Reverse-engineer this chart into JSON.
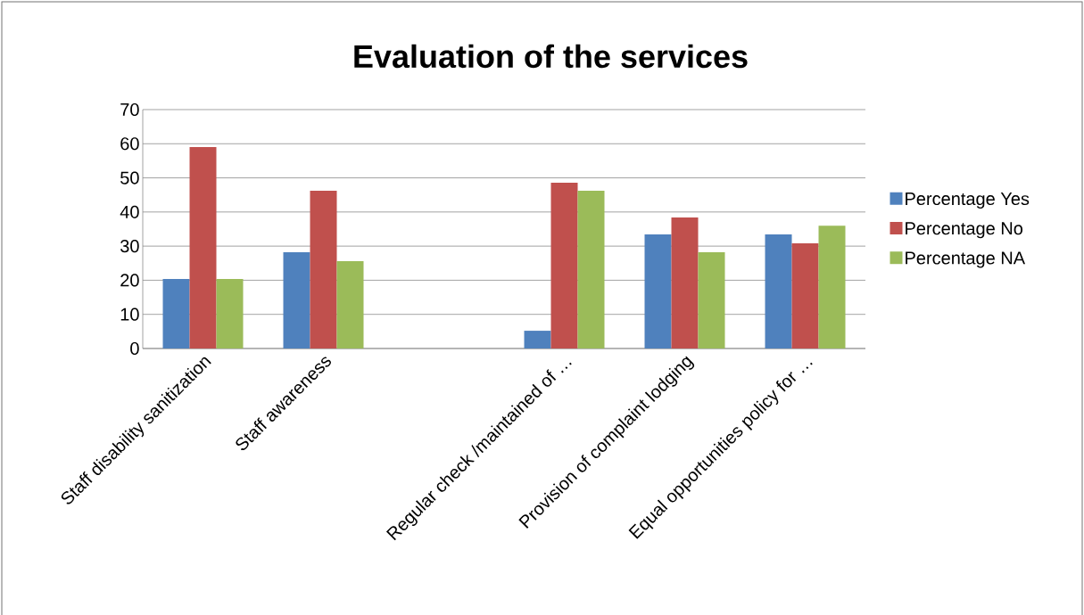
{
  "chart_data": {
    "type": "bar",
    "title": "Evaluation of the services",
    "categories": [
      "Staff disability sanitization",
      "Staff awareness",
      null,
      "Regular check /maintained  of …",
      "Provision of complaint lodging",
      "Equal opportunities policy for …"
    ],
    "series": [
      {
        "name": "Percentage Yes",
        "color": "#4f81bd",
        "values": [
          20.4,
          28.2,
          null,
          5.2,
          33.4,
          33.4
        ]
      },
      {
        "name": "Percentage No",
        "color": "#c0504d",
        "values": [
          59,
          46.2,
          null,
          48.6,
          38.4,
          30.8
        ]
      },
      {
        "name": "Percentage NA",
        "color": "#9bbb59",
        "values": [
          20.4,
          25.6,
          null,
          46.2,
          28.2,
          36
        ]
      }
    ],
    "ylim": [
      0,
      70
    ],
    "yticks": [
      0,
      10,
      20,
      30,
      40,
      50,
      60,
      70
    ],
    "grid": "y",
    "legend": "right"
  }
}
